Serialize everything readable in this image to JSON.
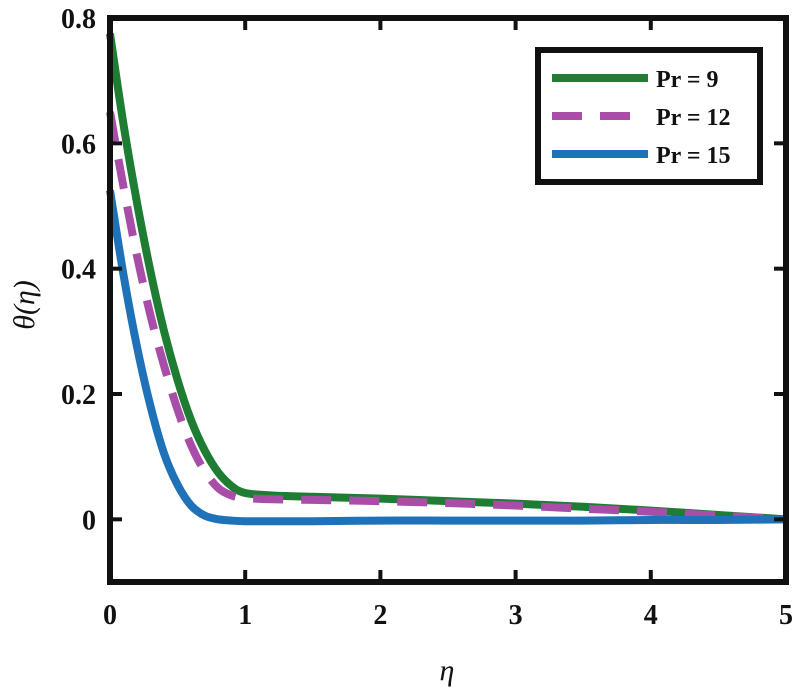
{
  "chart_data": {
    "type": "line",
    "xlabel": "η",
    "ylabel": "θ(η)",
    "xlim": [
      0,
      5
    ],
    "ylim": [
      -0.1,
      0.8
    ],
    "xticks": [
      "0",
      "1",
      "2",
      "3",
      "4",
      "5"
    ],
    "yticks": [
      "0",
      "0.2",
      "0.4",
      "0.6",
      "0.8"
    ],
    "grid": false,
    "legend_position": "top-right",
    "series": [
      {
        "name": "Pr = 9",
        "color": "#1e7d32",
        "dash": "solid",
        "x": [
          0,
          0.1,
          0.2,
          0.3,
          0.4,
          0.5,
          0.6,
          0.7,
          0.8,
          0.9,
          1.0,
          1.2,
          1.5,
          2,
          2.5,
          3,
          3.5,
          4,
          4.5,
          5
        ],
        "y": [
          0.775,
          0.63,
          0.505,
          0.395,
          0.3,
          0.222,
          0.158,
          0.11,
          0.075,
          0.053,
          0.042,
          0.038,
          0.036,
          0.033,
          0.029,
          0.025,
          0.02,
          0.014,
          0.007,
          0.0
        ]
      },
      {
        "name": "Pr = 12",
        "color": "#a84ea8",
        "dash": "dashed",
        "x": [
          0,
          0.1,
          0.2,
          0.3,
          0.4,
          0.5,
          0.6,
          0.7,
          0.8,
          0.9,
          1.0,
          1.2,
          1.5,
          2,
          2.5,
          3,
          3.5,
          4,
          4.5,
          5
        ],
        "y": [
          0.65,
          0.53,
          0.42,
          0.325,
          0.245,
          0.175,
          0.118,
          0.077,
          0.05,
          0.038,
          0.034,
          0.032,
          0.031,
          0.029,
          0.026,
          0.022,
          0.017,
          0.012,
          0.006,
          0.0
        ]
      },
      {
        "name": "Pr = 15",
        "color": "#1f72b8",
        "dash": "solid",
        "x": [
          0,
          0.1,
          0.2,
          0.3,
          0.4,
          0.5,
          0.6,
          0.7,
          0.8,
          0.9,
          1.0,
          1.2,
          1.5,
          2,
          2.5,
          3,
          3.5,
          4,
          4.5,
          5
        ],
        "y": [
          0.525,
          0.39,
          0.275,
          0.18,
          0.105,
          0.055,
          0.022,
          0.006,
          0.0,
          -0.002,
          -0.003,
          -0.003,
          -0.003,
          -0.002,
          -0.002,
          -0.002,
          -0.002,
          -0.001,
          -0.001,
          0.0
        ]
      }
    ]
  }
}
